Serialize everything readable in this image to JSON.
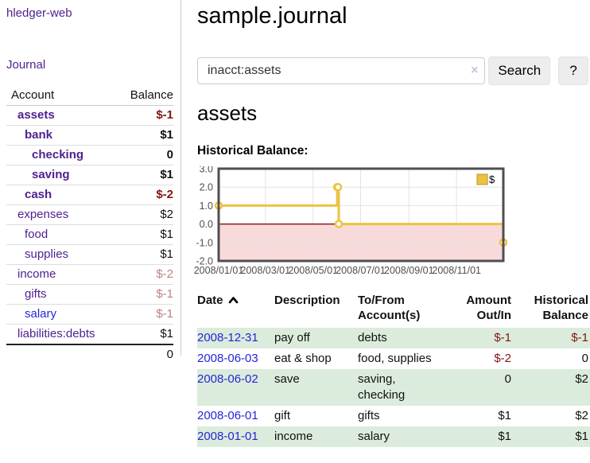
{
  "sidebar": {
    "app_title": "hledger-web",
    "nav_journal": "Journal",
    "accounts": {
      "headers": [
        "Account",
        "Balance"
      ],
      "rows": [
        {
          "name": "assets",
          "indent": 1,
          "bold": true,
          "balance": "$-1",
          "neg": "strong"
        },
        {
          "name": "bank",
          "indent": 2,
          "bold": true,
          "balance": "$1"
        },
        {
          "name": "checking",
          "indent": 3,
          "bold": true,
          "balance": "0"
        },
        {
          "name": "saving",
          "indent": 3,
          "bold": true,
          "balance": "$1"
        },
        {
          "name": "cash",
          "indent": 2,
          "bold": true,
          "balance": "$-2",
          "neg": "strong"
        },
        {
          "name": "expenses",
          "indent": 1,
          "bold": false,
          "balance": "$2"
        },
        {
          "name": "food",
          "indent": 2,
          "bold": false,
          "balance": "$1"
        },
        {
          "name": "supplies",
          "indent": 2,
          "bold": false,
          "balance": "$1"
        },
        {
          "name": "income",
          "indent": 1,
          "bold": false,
          "balance": "$-2",
          "neg": "soft"
        },
        {
          "name": "gifts",
          "indent": 2,
          "bold": false,
          "balance": "$-1",
          "neg": "soft"
        },
        {
          "name": "salary",
          "indent": 2,
          "bold": false,
          "balance": "$-1",
          "neg": "soft",
          "blue": true
        },
        {
          "name": "liabilities:debts",
          "indent": 1,
          "bold": false,
          "balance": "$1"
        }
      ],
      "total": "0"
    }
  },
  "main": {
    "title": "sample.journal",
    "search": {
      "value": "inacct:assets",
      "clear_icon": "×",
      "search_button": "Search",
      "help_button": "?"
    },
    "account_heading": "assets",
    "register": {
      "columns": [
        {
          "line1": "Date",
          "sortable": true,
          "sort": "asc"
        },
        {
          "line1": "Description"
        },
        {
          "line1": "To/From",
          "line2": "Account(s)"
        },
        {
          "line1": "Amount",
          "line2": "Out/In",
          "align": "right"
        },
        {
          "line1": "Historical",
          "line2": "Balance",
          "align": "right"
        }
      ],
      "rows": [
        {
          "date": "2008-12-31",
          "description": "pay off",
          "accounts": "debts",
          "amount": "$-1",
          "balance": "$-1",
          "amount_negative": true,
          "balance_negative": true
        },
        {
          "date": "2008-06-03",
          "description": "eat & shop",
          "accounts": "food, supplies",
          "amount": "$-2",
          "balance": "0",
          "amount_negative": true,
          "balance_negative": false
        },
        {
          "date": "2008-06-02",
          "description": "save",
          "accounts": "saving, checking",
          "amount": "0",
          "balance": "$2",
          "amount_negative": false,
          "balance_negative": false
        },
        {
          "date": "2008-06-01",
          "description": "gift",
          "accounts": "gifts",
          "amount": "$1",
          "balance": "$2",
          "amount_negative": false,
          "balance_negative": false
        },
        {
          "date": "2008-01-01",
          "description": "income",
          "accounts": "salary",
          "amount": "$1",
          "balance": "$1",
          "amount_negative": false,
          "balance_negative": false
        }
      ]
    }
  },
  "chart_data": {
    "type": "line",
    "step": true,
    "title": "Historical Balance:",
    "x_start": "2008-01-01",
    "x_end": "2008-12-31",
    "series": [
      {
        "name": "$",
        "color": "#edc240",
        "points": [
          [
            "2008-01-01",
            1
          ],
          [
            "2008-06-01",
            2
          ],
          [
            "2008-06-02",
            2
          ],
          [
            "2008-06-03",
            0
          ],
          [
            "2008-12-31",
            -1
          ]
        ]
      }
    ],
    "ylim": [
      -2,
      3
    ],
    "yticks": [
      3,
      2,
      1,
      0,
      -1,
      -2
    ],
    "ytick_labels": [
      "3.0",
      "2.0",
      "1.0",
      "0.0",
      "-1.0",
      "-2.0"
    ],
    "xticks": [
      "2008-01-01",
      "2008-03-01",
      "2008-05-01",
      "2008-07-01",
      "2008-09-01",
      "2008-11-01"
    ],
    "xtick_labels": [
      "2008/01/01",
      "2008/03/01",
      "2008/05/01",
      "2008/07/01",
      "2008/09/01",
      "2008/11/01"
    ],
    "legend": {
      "label": "$",
      "color": "#edc240",
      "position": "top-right"
    },
    "negative_region_color": "#f9dada",
    "zero_line_color": "#8b1c1c",
    "grid": true
  }
}
